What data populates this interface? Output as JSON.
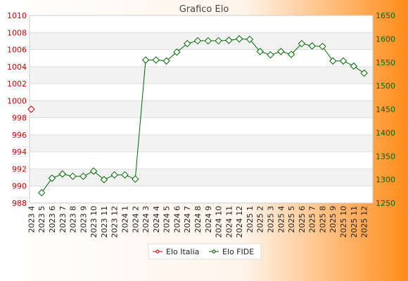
{
  "chart_data": {
    "type": "line",
    "title": "Grafico Elo",
    "xlabel": "",
    "x": [
      "2023 4",
      "2023 5",
      "2023 6",
      "2023 7",
      "2023 8",
      "2023 9",
      "2023 10",
      "2023 11",
      "2023 12",
      "2024 1",
      "2024 2",
      "2024 3",
      "2024 4",
      "2024 5",
      "2024 6",
      "2024 7",
      "2024 8",
      "2024 9",
      "2024 10",
      "2024 11",
      "2024 12",
      "2025 1",
      "2025 2",
      "2025 3",
      "2025 4",
      "2025 5",
      "2025 6",
      "2025 7",
      "2025 8",
      "2025 9",
      "2025 10",
      "2025 11",
      "2025 12"
    ],
    "series": [
      {
        "name": "Elo Italia",
        "axis": "left",
        "color": "#dd0000",
        "values": [
          999,
          null,
          null,
          null,
          null,
          null,
          null,
          null,
          null,
          null,
          null,
          null,
          null,
          null,
          null,
          null,
          null,
          null,
          null,
          null,
          null,
          null,
          null,
          null,
          null,
          null,
          null,
          null,
          null,
          null,
          null,
          null,
          null
        ]
      },
      {
        "name": "Elo FIDE",
        "axis": "right",
        "color": "#006600",
        "values": [
          null,
          1272,
          1303,
          1312,
          1307,
          1307,
          1318,
          1300,
          1310,
          1310,
          1301,
          1555,
          1555,
          1553,
          1572,
          1590,
          1596,
          1596,
          1596,
          1597,
          1600,
          1599,
          1573,
          1566,
          1573,
          1567,
          1590,
          1585,
          1584,
          1553,
          1553,
          1542,
          1527
        ]
      }
    ],
    "y_left": {
      "ylim": [
        988,
        1010
      ],
      "ticks": [
        "988",
        "990",
        "992",
        "994",
        "996",
        "998",
        "1000",
        "1002",
        "1004",
        "1006",
        "1008",
        "1010"
      ],
      "color": "#cc0000"
    },
    "y_right": {
      "ylim": [
        1250,
        1650
      ],
      "ticks": [
        "1250",
        "1300",
        "1350",
        "1400",
        "1450",
        "1500",
        "1550",
        "1600",
        "1650"
      ],
      "color": "#006600"
    },
    "grid": true,
    "legend": "bottom-center"
  },
  "colors": {
    "background_gradient": [
      "#ffffff",
      "#ff8c1a"
    ],
    "plot_band": "#f2f2f2",
    "grid": "#dddddd"
  }
}
